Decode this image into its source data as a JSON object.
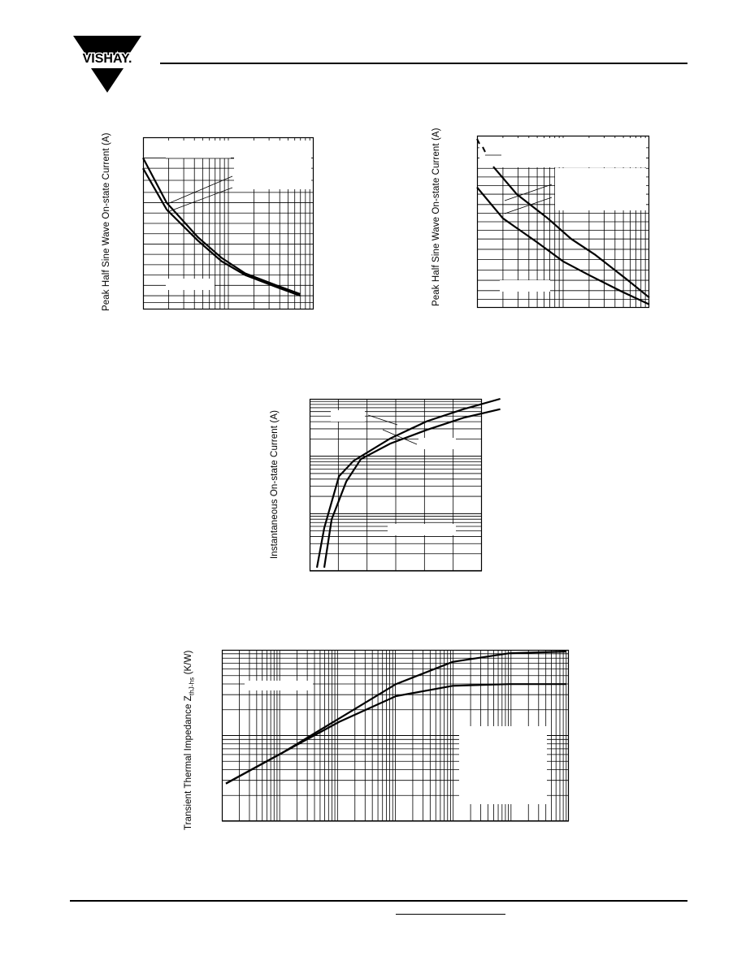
{
  "brand": {
    "name": "VISHAY."
  },
  "charts": [
    {
      "id": "fig1",
      "ylabel": "Peak Half Sine Wave On-state Current (A)",
      "chart_data": {
        "type": "line",
        "title": "",
        "xlabel": "",
        "ylabel": "Peak Half Sine Wave On-state Current (A)",
        "x_scale": "log",
        "grid": true,
        "series": [
          {
            "x": [
              1,
              2,
              5,
              10,
              20,
              50,
              100
            ],
            "y": [
              0.88,
              0.62,
              0.42,
              0.3,
              0.21,
              0.14,
              0.09
            ]
          },
          {
            "x": [
              1,
              2,
              5,
              10,
              20,
              50,
              100
            ],
            "y": [
              0.82,
              0.58,
              0.4,
              0.28,
              0.2,
              0.13,
              0.08
            ]
          }
        ]
      }
    },
    {
      "id": "fig2",
      "ylabel": "Peak Half Sine Wave On-state Current (A)",
      "chart_data": {
        "type": "line",
        "title": "",
        "xlabel": "",
        "ylabel": "Peak Half Sine Wave On-state Current (A)",
        "x_scale": "log",
        "grid": true,
        "series": [
          {
            "x": [
              0.01,
              0.02,
              0.05,
              0.1,
              0.2,
              0.5,
              1
            ],
            "y": [
              0.82,
              0.66,
              0.52,
              0.4,
              0.31,
              0.17,
              0.06
            ]
          },
          {
            "x": [
              0.01,
              0.02,
              0.05,
              0.1,
              0.2,
              0.5,
              1
            ],
            "y": [
              0.7,
              0.52,
              0.38,
              0.27,
              0.19,
              0.09,
              0.02
            ]
          }
        ]
      }
    },
    {
      "id": "fig3",
      "ylabel": "Instantaneous On-state Current (A)",
      "chart_data": {
        "type": "line",
        "title": "",
        "xlabel": "",
        "ylabel": "Instantaneous On-state Current (A)",
        "y_scale": "log",
        "grid": true,
        "series": [
          {
            "x": [
              0.5,
              0.6,
              0.8,
              1.0,
              1.5,
              2.0,
              2.5,
              3.0
            ],
            "y": [
              0.02,
              0.25,
              0.55,
              0.64,
              0.77,
              0.87,
              0.94,
              1.0
            ]
          },
          {
            "x": [
              0.6,
              0.7,
              0.9,
              1.1,
              1.5,
              2.0,
              2.5,
              3.0
            ],
            "y": [
              0.02,
              0.3,
              0.52,
              0.65,
              0.74,
              0.82,
              0.89,
              0.94
            ]
          }
        ]
      }
    },
    {
      "id": "fig4",
      "ylabel": "Transient Thermal Impedance Z",
      "ylabel_sub": "thJ-hs",
      "ylabel_unit": " (K/W)",
      "chart_data": {
        "type": "line",
        "title": "",
        "xlabel": "",
        "ylabel": "Transient Thermal Impedance Z thJ-hs (K/W)",
        "x_scale": "log",
        "y_scale": "log",
        "grid": true,
        "series": [
          {
            "x": [
              0.0001,
              0.001,
              0.01,
              0.1,
              1,
              10,
              100
            ],
            "y": [
              0.22,
              0.4,
              0.6,
              0.8,
              0.93,
              0.98,
              0.99
            ]
          },
          {
            "x": [
              0.0001,
              0.001,
              0.01,
              0.1,
              1,
              10,
              100
            ],
            "y": [
              0.22,
              0.4,
              0.58,
              0.73,
              0.79,
              0.8,
              0.8
            ]
          }
        ]
      }
    }
  ]
}
